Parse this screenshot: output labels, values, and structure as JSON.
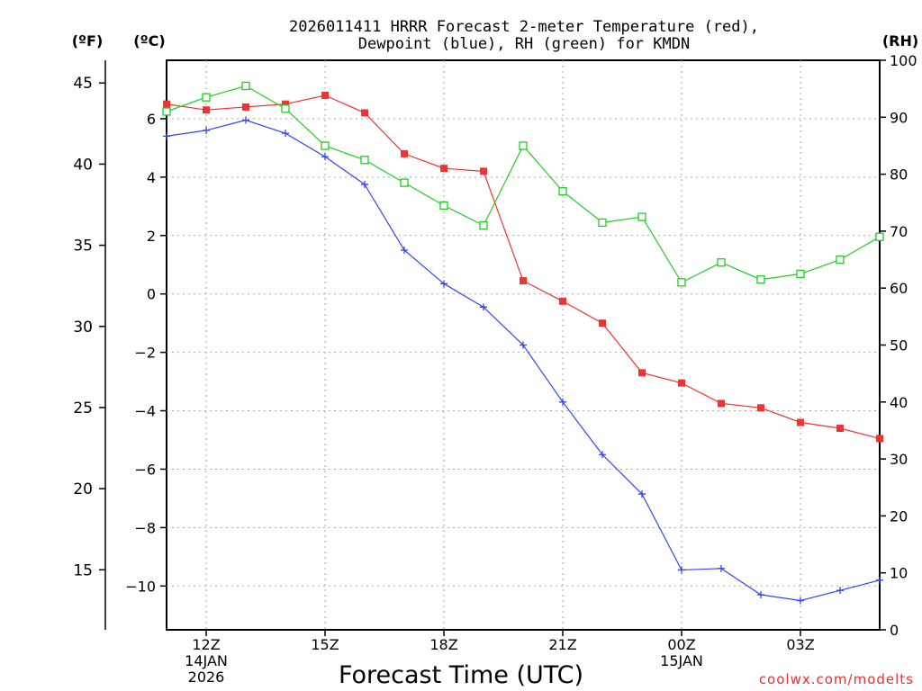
{
  "chart_data": {
    "type": "line",
    "title_line1": "2026011411 HRRR Forecast 2-meter Temperature (red),",
    "title_line2": "Dewpoint (blue), RH (green) for KMDN",
    "xlabel": "Forecast Time (UTC)",
    "unit_labels": {
      "fahrenheit": "(ºF)",
      "celsius": "(ºC)",
      "rh": "(RH)"
    },
    "watermark": "coolwx.com/modelts",
    "x_hours": [
      11,
      12,
      13,
      14,
      15,
      16,
      17,
      18,
      19,
      20,
      21,
      22,
      23,
      24,
      25,
      26,
      27,
      28,
      29
    ],
    "xlim": [
      11,
      29
    ],
    "x_ticks": [
      {
        "hour": 12,
        "labels": [
          "12Z",
          "14JAN",
          "2026"
        ]
      },
      {
        "hour": 15,
        "labels": [
          "15Z"
        ]
      },
      {
        "hour": 18,
        "labels": [
          "18Z"
        ]
      },
      {
        "hour": 21,
        "labels": [
          "21Z"
        ]
      },
      {
        "hour": 24,
        "labels": [
          "00Z",
          "15JAN"
        ]
      },
      {
        "hour": 27,
        "labels": [
          "03Z"
        ]
      }
    ],
    "ylim_c": [
      -11.5,
      8
    ],
    "y_ticks_c": [
      "6",
      "4",
      "2",
      "0",
      "−2",
      "−4",
      "−6",
      "−8",
      "−10"
    ],
    "y_ticks_f": [
      "45",
      "40",
      "35",
      "30",
      "25",
      "20",
      "15"
    ],
    "ylim_rh": [
      0,
      100
    ],
    "y_ticks_rh": [
      "100",
      "90",
      "80",
      "70",
      "60",
      "50",
      "40",
      "30",
      "20",
      "10",
      "0"
    ],
    "series": [
      {
        "name": "Temperature (°C)",
        "color": "#ee3333",
        "marker": "filled-square",
        "axis": "celsius",
        "values": [
          6.5,
          6.3,
          6.4,
          6.5,
          6.8,
          6.2,
          4.8,
          4.3,
          4.2,
          0.45,
          -0.25,
          -1.0,
          -2.7,
          -3.05,
          -3.75,
          -3.9,
          -4.4,
          -4.6,
          -4.95
        ]
      },
      {
        "name": "Dewpoint (°C)",
        "color": "#3344ee",
        "marker": "plus",
        "axis": "celsius",
        "values": [
          5.4,
          5.6,
          5.95,
          5.5,
          4.7,
          3.75,
          1.5,
          0.35,
          -0.45,
          -1.75,
          -3.7,
          -5.5,
          -6.85,
          -9.45,
          -9.4,
          -10.3,
          -10.5,
          -10.15,
          -9.8
        ]
      },
      {
        "name": "RH (%)",
        "color": "#22cc22",
        "marker": "open-square",
        "axis": "rh",
        "values": [
          91,
          93.5,
          95.5,
          91.5,
          85,
          82.5,
          78.5,
          74.5,
          71,
          85,
          77,
          71.5,
          72.5,
          61,
          64.5,
          61.5,
          62.5,
          65,
          69
        ]
      }
    ]
  }
}
